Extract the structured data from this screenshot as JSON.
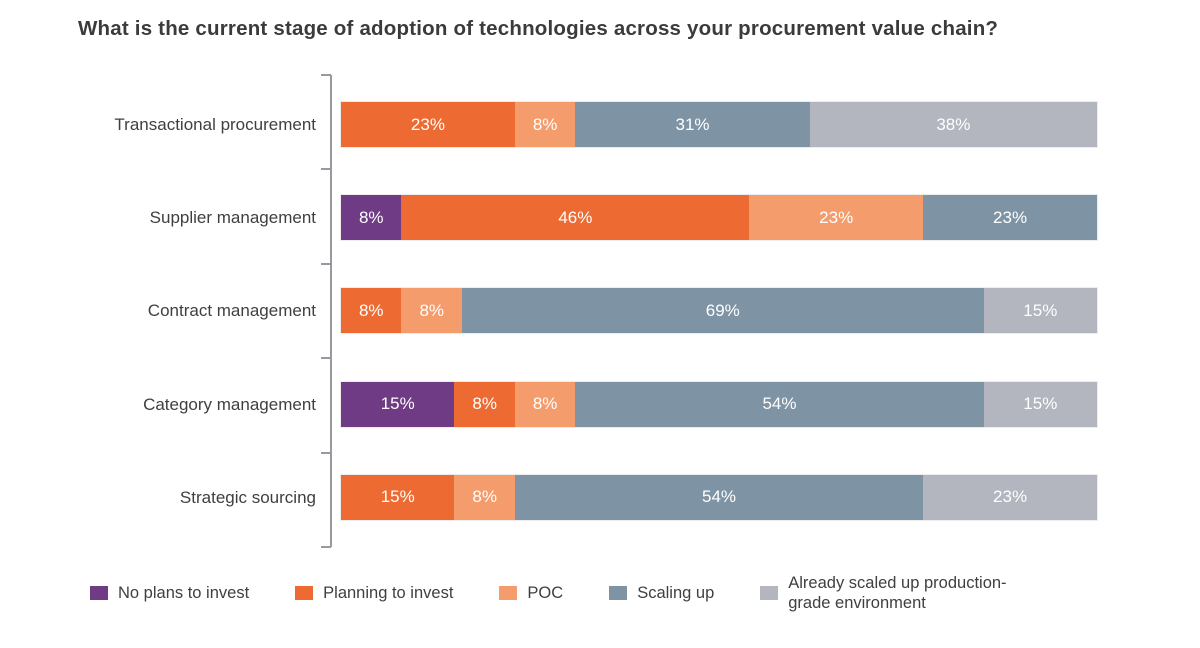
{
  "colors": {
    "background": "#ffffff",
    "axis": "#97999e",
    "text_dark": "#3f3f3f",
    "bar_value_label": "#ffffff"
  },
  "chart_data": {
    "type": "bar",
    "orientation": "horizontal-stacked",
    "title": "What is the current stage of adoption of technologies across your procurement value chain?",
    "categories": [
      "Transactional procurement",
      "Supplier management",
      "Contract management",
      "Category management",
      "Strategic sourcing"
    ],
    "series": [
      {
        "name": "No plans to invest",
        "color": "#6F3B85",
        "values": [
          0,
          8,
          0,
          15,
          0
        ]
      },
      {
        "name": "Planning to invest",
        "color": "#ED6B32",
        "values": [
          23,
          46,
          8,
          8,
          15
        ]
      },
      {
        "name": "POC",
        "color": "#F49C6C",
        "values": [
          8,
          23,
          8,
          8,
          8
        ]
      },
      {
        "name": "Scaling up",
        "color": "#7E94A5",
        "values": [
          31,
          23,
          69,
          54,
          54
        ]
      },
      {
        "name": "Already scaled up production-grade environment",
        "color": "#B3B6BF",
        "values": [
          38,
          0,
          15,
          15,
          23
        ]
      }
    ],
    "value_suffix": "%",
    "xlim": [
      0,
      100
    ],
    "grid": false,
    "legend_position": "bottom",
    "value_labels_shown": true
  }
}
